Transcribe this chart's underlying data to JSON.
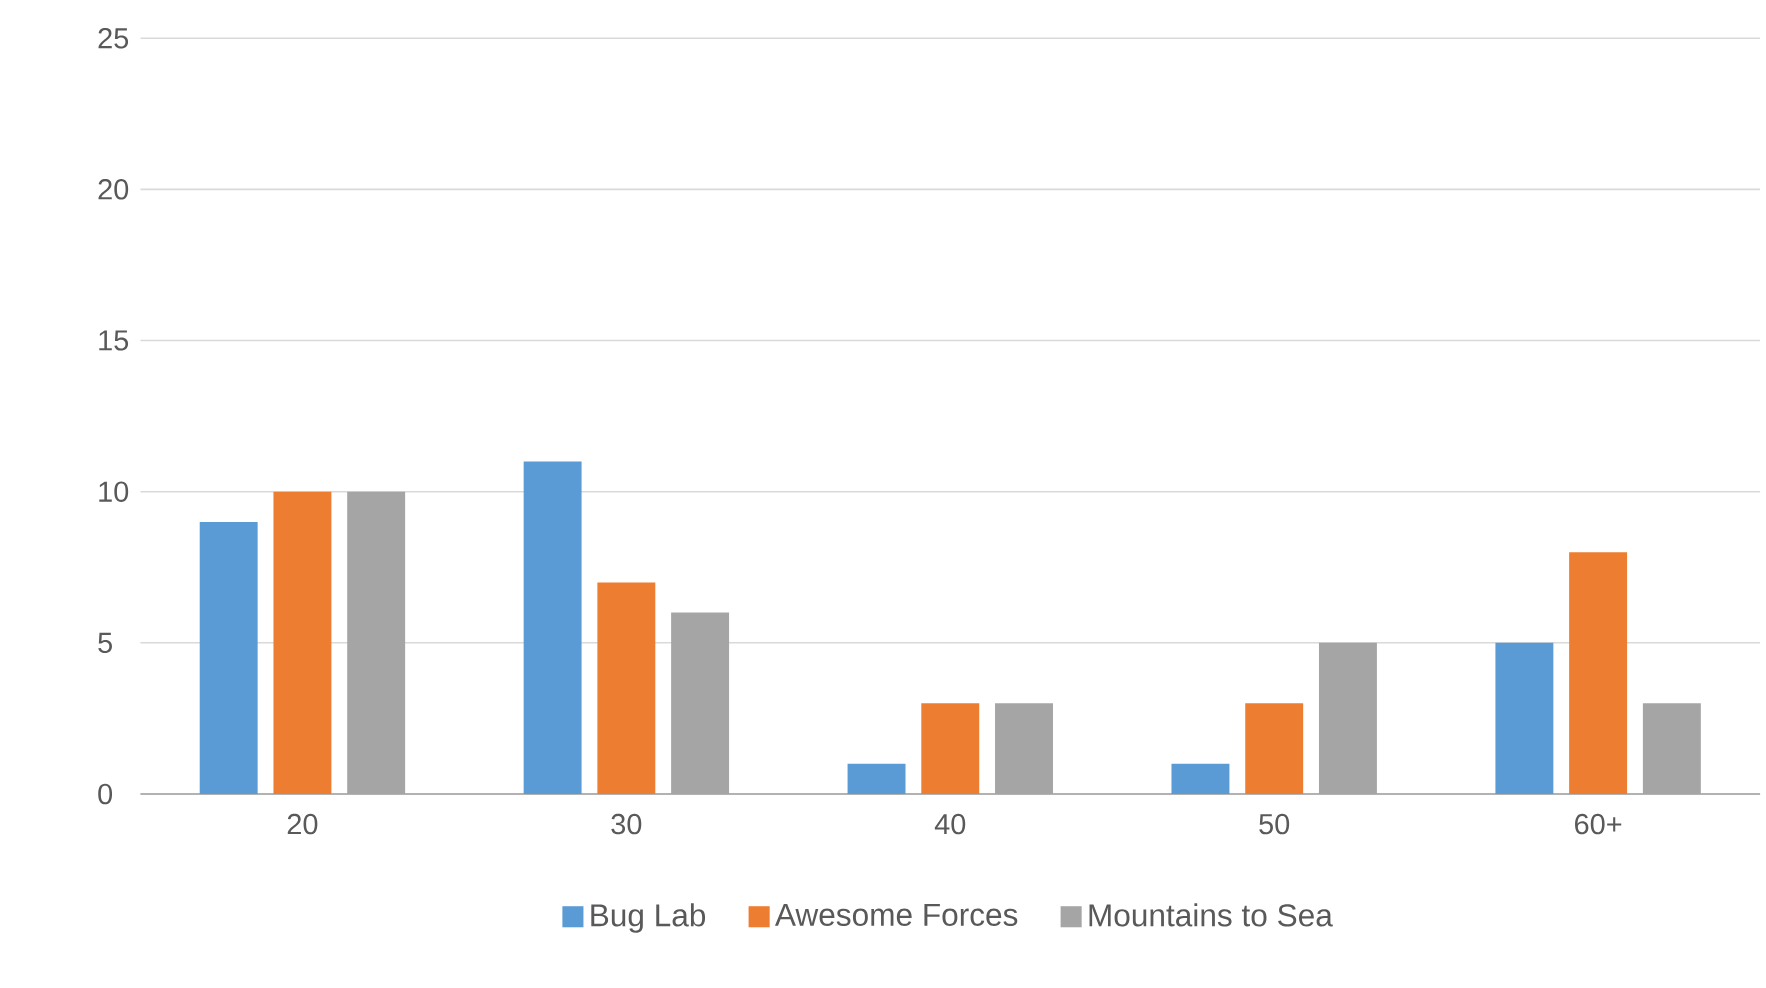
{
  "chart_data": {
    "type": "bar",
    "categories": [
      "20",
      "30",
      "40",
      "50",
      "60+"
    ],
    "series": [
      {
        "name": "Bug Lab",
        "color": "#5b9bd5",
        "values": [
          9,
          11,
          1,
          1,
          5
        ]
      },
      {
        "name": "Awesome Forces",
        "color": "#ed7d31",
        "values": [
          10,
          7,
          3,
          3,
          8
        ]
      },
      {
        "name": "Mountains to Sea",
        "color": "#a5a5a5",
        "values": [
          10,
          6,
          3,
          5,
          3
        ]
      }
    ],
    "ylim": [
      0,
      25
    ],
    "yticks": [
      0,
      5,
      10,
      15,
      20,
      25
    ],
    "grid": "y",
    "legend": "bottom"
  }
}
